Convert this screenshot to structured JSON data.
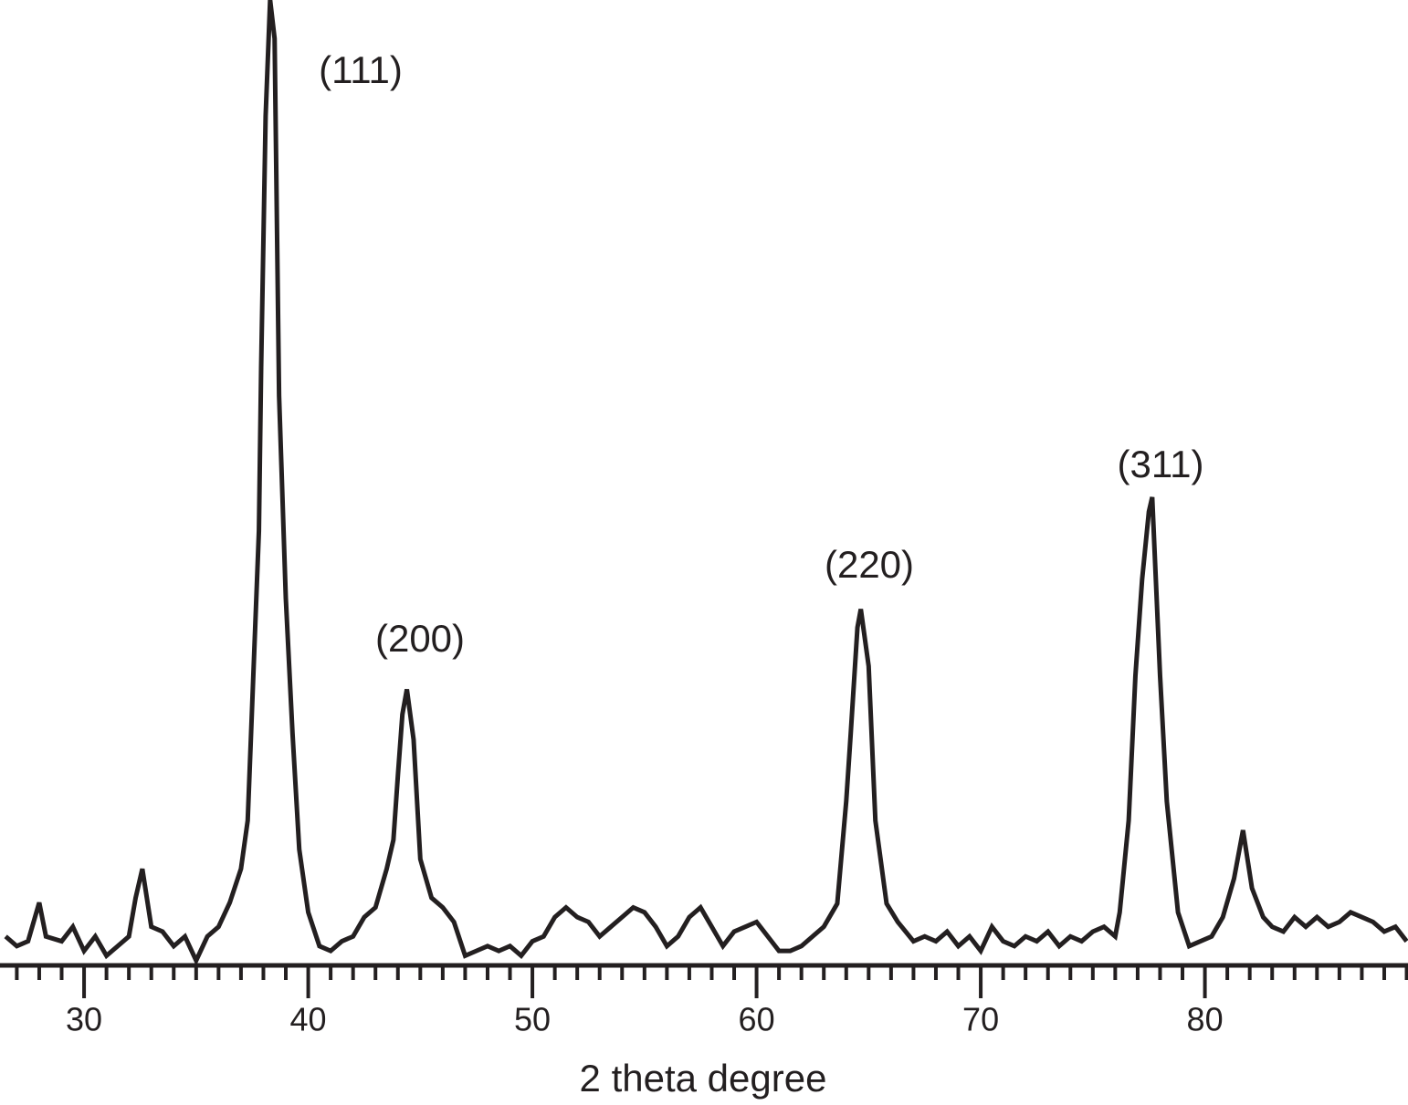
{
  "chart_data": {
    "type": "line",
    "x_label": "2 theta degree",
    "annotations": [
      "(111)",
      "(200)",
      "(220)",
      "(311)"
    ],
    "xlim": [
      26.25,
      89.06
    ],
    "xticks": [
      30,
      40,
      50,
      60,
      70,
      80
    ],
    "x_minor_ticks": [
      27,
      28,
      29,
      31,
      32,
      33,
      34,
      35,
      36,
      37,
      38,
      39,
      41,
      42,
      43,
      44,
      45,
      46,
      47,
      48,
      49,
      51,
      52,
      53,
      54,
      55,
      56,
      57,
      58,
      59,
      61,
      62,
      63,
      64,
      65,
      66,
      67,
      68,
      69,
      71,
      72,
      73,
      74,
      75,
      76,
      77,
      78,
      79,
      81,
      82,
      83,
      84,
      85,
      86,
      87,
      88,
      89
    ],
    "ylim": [
      0,
      100
    ],
    "color": "#231f20",
    "x": [
      26.5,
      27,
      27.5,
      28,
      28.3,
      29,
      29.5,
      30,
      30.5,
      31,
      31.5,
      32,
      32.3,
      32.6,
      33,
      33.5,
      34,
      34.5,
      35,
      35.5,
      36,
      36.5,
      37,
      37.3,
      37.5,
      37.8,
      37.9,
      38.1,
      38.3,
      38.5,
      38.7,
      39.0,
      39.3,
      39.6,
      40.0,
      40.5,
      41,
      41.5,
      42,
      42.5,
      43,
      43.5,
      43.8,
      44.0,
      44.2,
      44.4,
      44.7,
      45,
      45.5,
      46,
      46.5,
      47,
      47.5,
      48,
      48.5,
      49,
      49.5,
      50,
      50.5,
      51,
      51.5,
      52,
      52.5,
      53,
      53.5,
      54,
      54.5,
      55,
      55.5,
      56,
      56.5,
      57,
      57.5,
      58,
      58.5,
      59,
      59.5,
      60,
      60.5,
      61,
      61.5,
      62,
      62.5,
      63,
      63.6,
      64.0,
      64.2,
      64.5,
      64.65,
      65.0,
      65.3,
      65.8,
      66.3,
      67,
      67.5,
      68,
      68.5,
      69,
      69.5,
      70,
      70.5,
      71,
      71.5,
      72,
      72.5,
      73,
      73.5,
      74,
      74.5,
      75,
      75.5,
      76,
      76.2,
      76.6,
      76.9,
      77.2,
      77.5,
      77.65,
      78.0,
      78.3,
      78.8,
      79.3,
      79.8,
      80.3,
      80.8,
      81.3,
      81.7,
      82.1,
      82.6,
      83,
      83.5,
      84,
      84.5,
      85,
      85.5,
      86,
      86.5,
      87,
      87.5,
      88,
      88.5,
      89
    ],
    "values": [
      3,
      2,
      2.5,
      6.5,
      3,
      2.5,
      4,
      1.5,
      3,
      1,
      2,
      3,
      7,
      10,
      4,
      3.5,
      2,
      3,
      0.5,
      3,
      4,
      6.5,
      10,
      15,
      27,
      45,
      62,
      88,
      100,
      96,
      59,
      38,
      24,
      12,
      5.5,
      2,
      1.5,
      2.5,
      3,
      5,
      6,
      10,
      13,
      19.7,
      26,
      28.6,
      23.4,
      11,
      7,
      6,
      4.5,
      1,
      1.5,
      2,
      1.5,
      2,
      1,
      2.5,
      3,
      5,
      6,
      5,
      4.5,
      3,
      4,
      5,
      6,
      5.5,
      4,
      2,
      3,
      5,
      6,
      4,
      2,
      3.5,
      4,
      4.5,
      3,
      1.5,
      1.5,
      2,
      3,
      4,
      6.4,
      17,
      24,
      35,
      36.9,
      31,
      15,
      6.4,
      4.5,
      2.5,
      3,
      2.5,
      3.5,
      2,
      3,
      1.5,
      4,
      2.5,
      2,
      3,
      2.5,
      3.5,
      2,
      3,
      2.5,
      3.5,
      4,
      3,
      5.5,
      15,
      30,
      40,
      47,
      48.5,
      30,
      17,
      5.5,
      2,
      2.5,
      3,
      5,
      9,
      14,
      8,
      5,
      4,
      3.5,
      5,
      4,
      5,
      4,
      4.5,
      5.5,
      5,
      4.5,
      3.5,
      4,
      2.5
    ]
  }
}
